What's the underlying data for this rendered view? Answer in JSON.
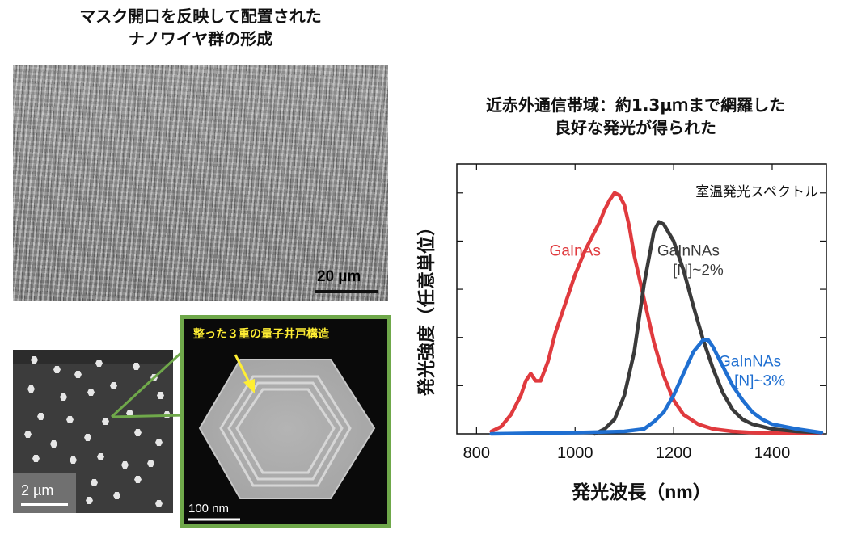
{
  "left_title": {
    "line1": "マスク開口を反映して配置された",
    "line2": "ナノワイヤ群の形成"
  },
  "right_title": {
    "line1": "近赤外通信帯域：約1.3μｍまで網羅した",
    "line2": "良好な発光が得られた"
  },
  "sem_wide": {
    "scale_label": "20 µm"
  },
  "sem_top": {
    "scale_label": "2 µm"
  },
  "tem": {
    "label": "整った３重の量子井戸構造",
    "scale_label": "100 nm"
  },
  "colors": {
    "inset_frame": "#6fa84a",
    "annotation": "#ffee33",
    "gainas": "#e03a3e",
    "gainnas2": "#3a3a3a",
    "gainnas3": "#1f6fd1"
  },
  "chart_data": {
    "type": "line",
    "title": "",
    "xlabel": "発光波長（nm）",
    "ylabel": "発光強度（任意単位）",
    "annotation": "室温発光スペクトル",
    "xlim": [
      760,
      1510
    ],
    "ylim": [
      0,
      1.12
    ],
    "xticks": [
      800,
      1000,
      1200,
      1400
    ],
    "yticks": [
      0.2,
      0.4,
      0.6,
      0.8,
      1.0
    ],
    "series": [
      {
        "name": "GaInAs",
        "label_lines": [
          "GaInAs"
        ],
        "color": "#e03a3e",
        "x": [
          830,
          850,
          870,
          890,
          900,
          910,
          920,
          930,
          945,
          960,
          980,
          1000,
          1020,
          1040,
          1050,
          1060,
          1070,
          1080,
          1090,
          1100,
          1110,
          1120,
          1140,
          1160,
          1180,
          1200,
          1220,
          1250,
          1280,
          1320,
          1360,
          1400,
          1450,
          1500
        ],
        "y": [
          0.01,
          0.03,
          0.08,
          0.16,
          0.22,
          0.25,
          0.22,
          0.22,
          0.3,
          0.42,
          0.54,
          0.66,
          0.76,
          0.84,
          0.88,
          0.93,
          0.97,
          1.0,
          0.99,
          0.95,
          0.86,
          0.74,
          0.56,
          0.38,
          0.24,
          0.14,
          0.08,
          0.04,
          0.02,
          0.01,
          0.005,
          0.003,
          0.002,
          0.001
        ]
      },
      {
        "name": "GaInNAs",
        "label_lines": [
          "GaInNAs",
          "[N]~2%"
        ],
        "color": "#3a3a3a",
        "x": [
          1040,
          1060,
          1080,
          1100,
          1120,
          1140,
          1160,
          1170,
          1180,
          1200,
          1220,
          1240,
          1260,
          1280,
          1300,
          1320,
          1340,
          1360,
          1400,
          1450,
          1500
        ],
        "y": [
          0.0,
          0.02,
          0.06,
          0.16,
          0.34,
          0.62,
          0.84,
          0.88,
          0.87,
          0.8,
          0.68,
          0.53,
          0.39,
          0.27,
          0.17,
          0.1,
          0.06,
          0.04,
          0.02,
          0.01,
          0.005
        ]
      },
      {
        "name": "GaInNAs",
        "label_lines": [
          "GaInNAs",
          "[N]~3%"
        ],
        "color": "#1f6fd1",
        "x": [
          830,
          1000,
          1100,
          1140,
          1160,
          1180,
          1200,
          1220,
          1240,
          1260,
          1270,
          1280,
          1300,
          1320,
          1340,
          1360,
          1380,
          1400,
          1450,
          1500
        ],
        "y": [
          0.0,
          0.005,
          0.01,
          0.02,
          0.05,
          0.09,
          0.16,
          0.25,
          0.34,
          0.39,
          0.39,
          0.36,
          0.28,
          0.2,
          0.14,
          0.09,
          0.06,
          0.04,
          0.02,
          0.005
        ]
      }
    ]
  }
}
